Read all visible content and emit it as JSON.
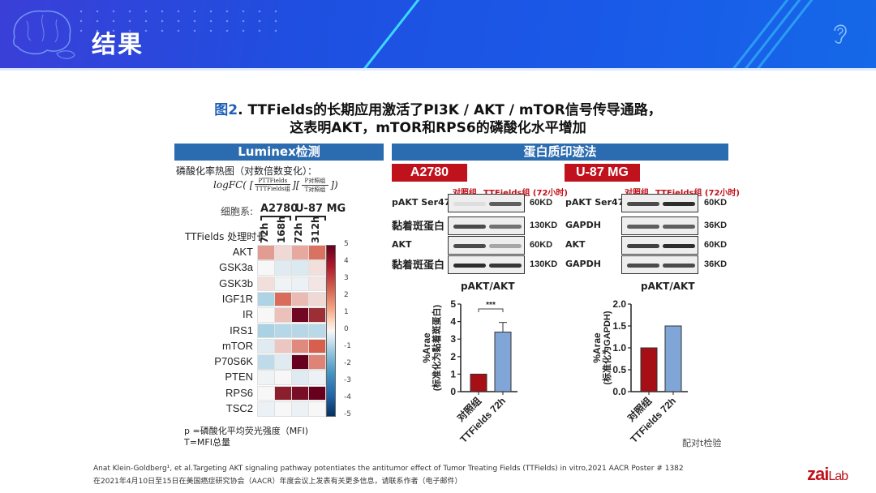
{
  "header": {
    "title": "结果"
  },
  "figure_title": {
    "prefix": "图2",
    "line1": ". TTFields的长期应用激活了PI3K / AKT / mTOR信号传导通路，",
    "line2": "这表明AKT，mTOR和RPS6的磷酸化水平增加"
  },
  "luminex": {
    "bar_title": "Luminex检测",
    "heatmap_caption": "磷酸化率热图（对数倍数变化）：",
    "formula": "logFC( [ PTTFields / TTTFields组 ][ P对照组 / T对照组 ])",
    "cell_line_label": "细胞系:",
    "cell_lines": [
      "A2780",
      "U-87 MG"
    ],
    "duration_label": "TTFields 处理时长",
    "durations": [
      "72h",
      "168h",
      "72h",
      "312h"
    ],
    "rows": [
      "AKT",
      "GSK3a",
      "GSK3b",
      "IGF1R",
      "IR",
      "IRS1",
      "mTOR",
      "P70S6K",
      "PTEN",
      "RPS6",
      "TSC2"
    ],
    "colorbar_ticks": [
      "5",
      "4",
      "3",
      "2",
      "1",
      "0",
      "-1",
      "-2",
      "-3",
      "-4",
      "-5"
    ],
    "note1": "p =磷酸化平均荧光强度（MFI)",
    "note2": "T=MFI总量"
  },
  "western": {
    "bar_title": "蛋白质印迹法",
    "panels": [
      {
        "cell_line": "A2780",
        "groups": [
          "对照组",
          "TTFields组 (72小时)"
        ],
        "blots": [
          {
            "label": "pAKT Ser473",
            "kd": "60KD"
          },
          {
            "label": "黏着斑蛋白",
            "kd": "130KD"
          },
          {
            "label": "AKT",
            "kd": "60KD"
          },
          {
            "label": "黏着斑蛋白",
            "kd": "130KD"
          }
        ],
        "chart_title": "pAKT/AKT",
        "ylabel": "%Arae (标准化为黏着斑蛋白)",
        "significance": "***"
      },
      {
        "cell_line": "U-87 MG",
        "groups": [
          "对照组",
          "TTFields组 (72小时)"
        ],
        "blots": [
          {
            "label": "pAKT Ser473",
            "kd": "60KD"
          },
          {
            "label": "GAPDH",
            "kd": "36KD"
          },
          {
            "label": "AKT",
            "kd": "60KD"
          },
          {
            "label": "GAPDH",
            "kd": "36KD"
          }
        ],
        "chart_title": "pAKT/AKT",
        "ylabel": "%Arae (标准化为GAPDH)",
        "test_note": "配对t检验"
      }
    ]
  },
  "footer": {
    "citation": "Anat Klein-Goldberg¹, et al.Targeting AKT signaling pathway potentiates the antitumor effect of Tumor Treating Fields (TTFields) in vitro,2021 AACR Poster # 1382",
    "note": "在2021年4月10日至15日在美国癌症研究协会（AACR）年度会议上发表有关更多信息，请联系作者（电子邮件）",
    "logo": "zaiLab"
  },
  "colors": {
    "header_blue": "#1e4fe0",
    "section_blue": "#2b6bb0",
    "tag_red": "#c0121c",
    "bar_control": "#a50f15",
    "bar_treated": "#7fa6d6"
  },
  "chart_data": [
    {
      "type": "heatmap",
      "title": "磷酸化率热图（对数倍数变化）",
      "x": [
        "A2780 72h",
        "A2780 168h",
        "U-87 MG 72h",
        "U-87 MG 312h"
      ],
      "y": [
        "AKT",
        "GSK3a",
        "GSK3b",
        "IGF1R",
        "IR",
        "IRS1",
        "mTOR",
        "P70S6K",
        "PTEN",
        "RPS6",
        "TSC2"
      ],
      "values": [
        [
          1.5,
          0.5,
          1.3,
          2.2
        ],
        [
          0.0,
          -0.6,
          -0.7,
          0.4
        ],
        [
          0.4,
          -0.2,
          -0.3,
          0.3
        ],
        [
          -1.8,
          2.3,
          1.0,
          0.5
        ],
        [
          0.0,
          0.9,
          4.8,
          3.8
        ],
        [
          -1.9,
          -1.6,
          -1.6,
          -1.5
        ],
        [
          -0.6,
          0.8,
          1.8,
          2.5
        ],
        [
          -1.4,
          -0.6,
          5.0,
          1.9
        ],
        [
          -0.2,
          0.0,
          -0.6,
          -0.3
        ],
        [
          0.0,
          4.2,
          4.6,
          5.0
        ],
        [
          -0.3,
          0.0,
          -0.3,
          0.0
        ]
      ],
      "colorbar_range": [
        -5,
        5
      ]
    },
    {
      "type": "bar",
      "title": "pAKT/AKT (A2780)",
      "categories": [
        "对照组",
        "TTFields 72h"
      ],
      "values": [
        1.0,
        3.4
      ],
      "error": [
        0,
        0.55
      ],
      "ylabel": "%Arae (标准化为黏着斑蛋白)",
      "ylim": [
        0,
        5
      ],
      "yticks": [
        0,
        1,
        2,
        3,
        4,
        5
      ],
      "annotation": "***"
    },
    {
      "type": "bar",
      "title": "pAKT/AKT (U-87 MG)",
      "categories": [
        "对照组",
        "TTFields 72h"
      ],
      "values": [
        1.0,
        1.5
      ],
      "ylabel": "%Arae (标准化为GAPDH)",
      "ylim": [
        0,
        2.0
      ],
      "yticks": [
        0.0,
        0.5,
        1.0,
        1.5,
        2.0
      ],
      "annotation": "配对t检验"
    }
  ]
}
